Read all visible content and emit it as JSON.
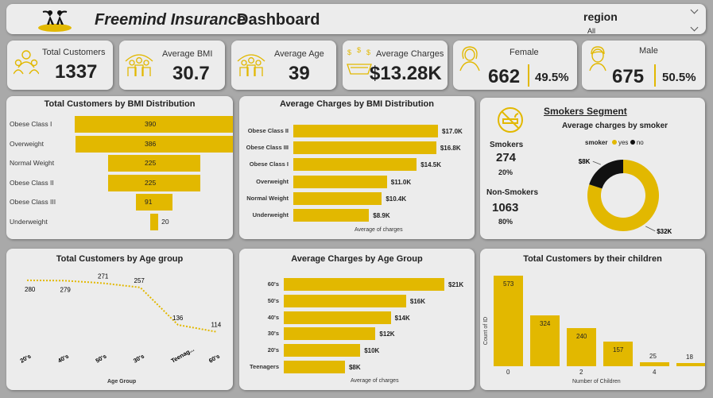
{
  "header": {
    "title_part1": "Freemind Insurance",
    "title_part2": "Dashboard",
    "region_label": "region",
    "region_value": "All"
  },
  "kpis": {
    "total_customers": {
      "label": "Total Customers",
      "value": "1337",
      "icon": "people-icon"
    },
    "avg_bmi": {
      "label": "Average BMI",
      "value": "30.7",
      "icon": "group-icon"
    },
    "avg_age": {
      "label": "Average Age",
      "value": "39",
      "icon": "family-icon"
    },
    "avg_charges": {
      "label": "Average Charges",
      "value": "$13.28K",
      "icon": "money-hand-icon"
    },
    "female": {
      "label": "Female",
      "value": "662",
      "pct": "49.5%",
      "icon": "woman-icon"
    },
    "male": {
      "label": "Male",
      "value": "675",
      "pct": "50.5%",
      "icon": "man-icon"
    }
  },
  "colors": {
    "accent": "#e2b800",
    "panel": "#ececec",
    "background": "#a9a9a9",
    "dark": "#111111"
  },
  "charts": {
    "bmi_customers": {
      "title": "Total Customers by BMI Distribution",
      "type": "bar",
      "categories": [
        "Obese Class I",
        "Overweight",
        "Normal Weight",
        "Obese Class II",
        "Obese Class III",
        "Underweight"
      ],
      "values": [
        390,
        386,
        225,
        225,
        91,
        20
      ]
    },
    "bmi_charges": {
      "title": "Average Charges by BMI Distribution",
      "type": "bar",
      "categories": [
        "Obese Class II",
        "Obese Class III",
        "Obese Class I",
        "Overweight",
        "Normal Weight",
        "Underweight"
      ],
      "values": [
        17.0,
        16.8,
        14.5,
        11.0,
        10.4,
        8.9
      ],
      "labels": [
        "$17.0K",
        "$16.8K",
        "$14.5K",
        "$11.0K",
        "$10.4K",
        "$8.9K"
      ],
      "xlabel": "Average of charges"
    },
    "smokers": {
      "title": "Smokers Segment",
      "subtitle": "Average charges by smoker",
      "smokers_label": "Smokers",
      "smokers_count": "274",
      "smokers_pct": "20%",
      "non_smokers_label": "Non-Smokers",
      "non_smokers_count": "1063",
      "non_smokers_pct": "80%",
      "legend_title": "smoker",
      "legend_yes": "yes",
      "legend_no": "no",
      "type": "pie",
      "slices": [
        {
          "name": "yes",
          "value": 32,
          "label": "$32K"
        },
        {
          "name": "no",
          "value": 8,
          "label": "$8K"
        }
      ]
    },
    "age_customers": {
      "title": "Total Customers by Age group",
      "type": "line",
      "categories": [
        "20's",
        "40's",
        "50's",
        "30's",
        "Teenag...",
        "60's"
      ],
      "values": [
        280,
        279,
        271,
        257,
        136,
        114
      ],
      "xlabel": "Age Group"
    },
    "age_charges": {
      "title": "Average Charges by Age Group",
      "type": "bar",
      "categories": [
        "60's",
        "50's",
        "40's",
        "30's",
        "20's",
        "Teenagers"
      ],
      "values": [
        21,
        16,
        14,
        12,
        10,
        8
      ],
      "labels": [
        "$21K",
        "$16K",
        "$14K",
        "$12K",
        "$10K",
        "$8K"
      ],
      "xlabel": "Average of charges"
    },
    "children": {
      "title": "Total Customers by their children",
      "type": "bar",
      "categories": [
        "0",
        "1",
        "2",
        "3",
        "4",
        "5"
      ],
      "tick_labels": [
        "0",
        "",
        "2",
        "",
        "4",
        ""
      ],
      "values": [
        573,
        324,
        240,
        157,
        25,
        18
      ],
      "xlabel": "Number of Children",
      "ylabel": "Count of ID"
    }
  },
  "chart_data": [
    {
      "type": "bar",
      "title": "Total Customers by BMI Distribution",
      "categories": [
        "Obese Class I",
        "Overweight",
        "Normal Weight",
        "Obese Class II",
        "Obese Class III",
        "Underweight"
      ],
      "values": [
        390,
        386,
        225,
        225,
        91,
        20
      ]
    },
    {
      "type": "bar",
      "title": "Average Charges by BMI Distribution",
      "categories": [
        "Obese Class II",
        "Obese Class III",
        "Obese Class I",
        "Overweight",
        "Normal Weight",
        "Underweight"
      ],
      "values": [
        17000,
        16800,
        14500,
        11000,
        10400,
        8900
      ],
      "xlabel": "Average of charges"
    },
    {
      "type": "pie",
      "title": "Average charges by smoker",
      "categories": [
        "yes",
        "no"
      ],
      "values": [
        32000,
        8000
      ]
    },
    {
      "type": "line",
      "title": "Total Customers by Age group",
      "categories": [
        "20's",
        "40's",
        "50's",
        "30's",
        "Teenag...",
        "60's"
      ],
      "values": [
        280,
        279,
        271,
        257,
        136,
        114
      ],
      "xlabel": "Age Group"
    },
    {
      "type": "bar",
      "title": "Average Charges by Age Group",
      "categories": [
        "60's",
        "50's",
        "40's",
        "30's",
        "20's",
        "Teenagers"
      ],
      "values": [
        21000,
        16000,
        14000,
        12000,
        10000,
        8000
      ],
      "xlabel": "Average of charges"
    },
    {
      "type": "bar",
      "title": "Total Customers by their children",
      "categories": [
        "0",
        "1",
        "2",
        "3",
        "4",
        "5"
      ],
      "values": [
        573,
        324,
        240,
        157,
        25,
        18
      ],
      "xlabel": "Number of Children",
      "ylabel": "Count of ID"
    }
  ]
}
